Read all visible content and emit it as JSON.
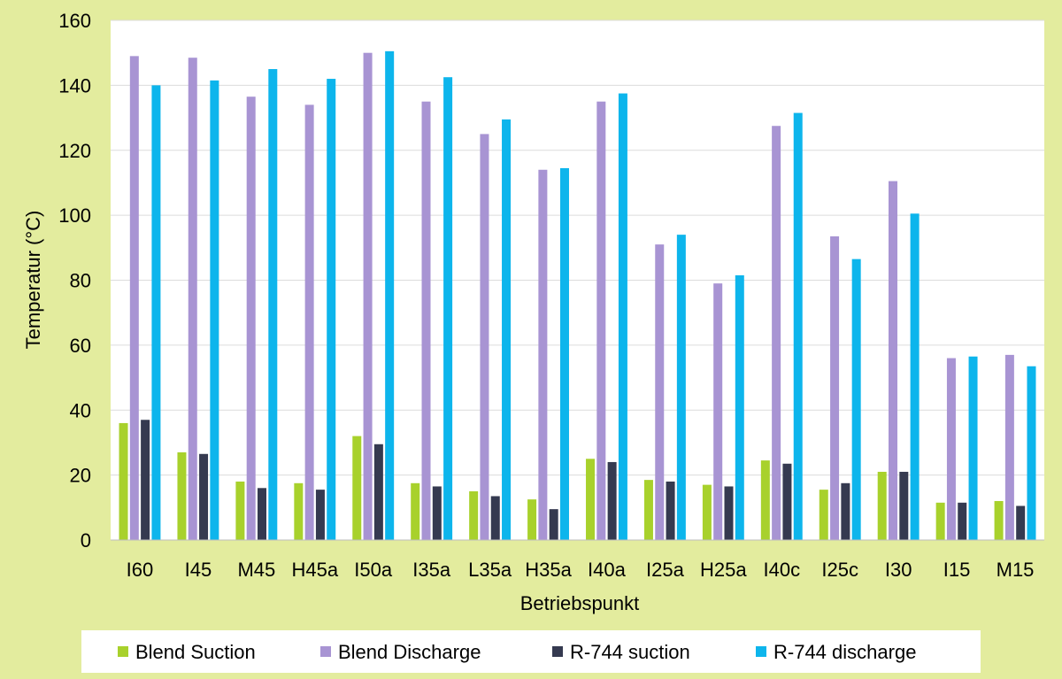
{
  "chart_data": {
    "type": "bar",
    "title": "",
    "xlabel": "Betriebspunkt",
    "ylabel": "Temperatur (°C)",
    "ylim": [
      0,
      160
    ],
    "yticks": [
      0,
      20,
      40,
      60,
      80,
      100,
      120,
      140,
      160
    ],
    "grid": true,
    "legend_position": "bottom",
    "categories": [
      "I60",
      "I45",
      "M45",
      "H45a",
      "I50a",
      "I35a",
      "L35a",
      "H35a",
      "I40a",
      "I25a",
      "H25a",
      "I40c",
      "I25c",
      "I30",
      "I15",
      "M15"
    ],
    "series": [
      {
        "name": "Blend Suction",
        "color": "#a8d12c",
        "values": [
          36,
          27,
          18,
          17.5,
          32,
          17.5,
          15,
          12.5,
          25,
          18.5,
          17,
          24.5,
          15.5,
          21,
          11.5,
          12
        ]
      },
      {
        "name": "Blend Discharge",
        "color": "#a894d3",
        "values": [
          149,
          148.5,
          136.5,
          134,
          150,
          135,
          125,
          114,
          135,
          91,
          79,
          127.5,
          93.5,
          110.5,
          56,
          57
        ]
      },
      {
        "name": "R-744 suction",
        "color": "#353a50",
        "values": [
          37,
          26.5,
          16,
          15.5,
          29.5,
          16.5,
          13.5,
          9.5,
          24,
          18,
          16.5,
          23.5,
          17.5,
          21,
          11.5,
          10.5
        ]
      },
      {
        "name": "R-744 discharge",
        "color": "#0db5ec",
        "values": [
          140,
          141.5,
          145,
          142,
          150.5,
          142.5,
          129.5,
          114.5,
          137.5,
          94,
          81.5,
          131.5,
          86.5,
          100.5,
          56.5,
          53.5
        ]
      }
    ]
  }
}
